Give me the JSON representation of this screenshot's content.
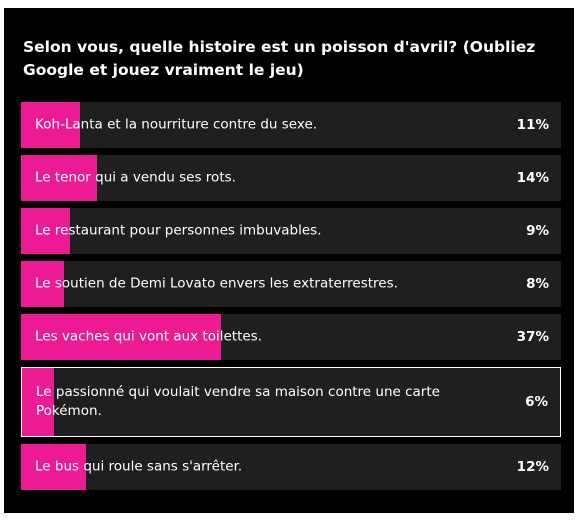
{
  "poll": {
    "question": "Selon vous, quelle histoire est un poisson d'avril? (Oubliez Google et jouez vraiment le jeu)",
    "accent_color": "#ec1a93",
    "options": [
      {
        "label": "Koh-Lanta et la nourriture contre du sexe.",
        "percent_text": "11%",
        "percent": 11,
        "selected": false
      },
      {
        "label": "Le tenor qui a vendu ses rots.",
        "percent_text": "14%",
        "percent": 14,
        "selected": false
      },
      {
        "label": "Le restaurant pour personnes imbuvables.",
        "percent_text": "9%",
        "percent": 9,
        "selected": false
      },
      {
        "label": "Le soutien de Demi Lovato envers les extraterrestres.",
        "percent_text": "8%",
        "percent": 8,
        "selected": false
      },
      {
        "label": "Les vaches qui vont aux toilettes.",
        "percent_text": "37%",
        "percent": 37,
        "selected": false
      },
      {
        "label": "Le passionné qui voulait vendre sa maison contre une carte Pokémon.",
        "percent_text": "6%",
        "percent": 6,
        "selected": true
      },
      {
        "label": "Le bus qui roule sans s'arrêter.",
        "percent_text": "12%",
        "percent": 12,
        "selected": false
      }
    ]
  }
}
